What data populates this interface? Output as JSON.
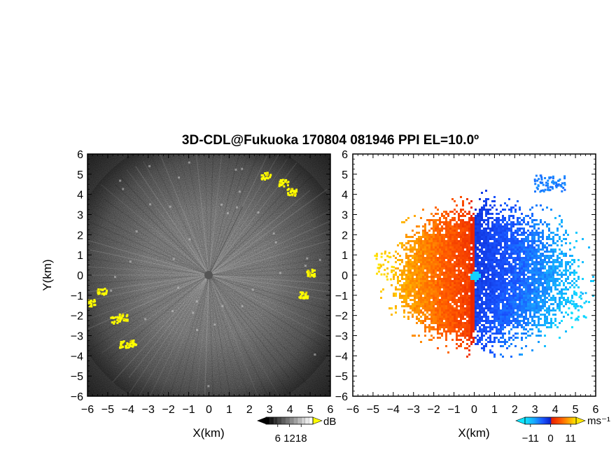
{
  "title": "3D-CDL@Fukuoka 170804 081946 PPI EL=10.0º",
  "chart_data": [
    {
      "type": "heatmap",
      "panel": "left",
      "quantity": "reflectivity / SNR",
      "xlabel": "X(km)",
      "ylabel": "Y(km)",
      "xlim": [
        -6,
        6
      ],
      "ylim": [
        -6,
        6
      ],
      "xticks": [
        "−6",
        "−5",
        "−4",
        "−3",
        "−2",
        "−1",
        "0",
        "1",
        "2",
        "3",
        "4",
        "5",
        "6"
      ],
      "yticks": [
        "6",
        "5",
        "4",
        "3",
        "2",
        "1",
        "0",
        "−1",
        "−2",
        "−3",
        "−4",
        "−5",
        "−6"
      ],
      "colorbar": {
        "unit": "dB",
        "ticks": [
          "6",
          "12",
          "18"
        ],
        "range": [
          0,
          24
        ],
        "palette": "black-to-white, yellow above max"
      },
      "background_range_km": 5.2,
      "yellow_echoes": [
        {
          "x": 3.65,
          "y": 4.6
        },
        {
          "x": 4.05,
          "y": 4.15
        },
        {
          "x": 2.8,
          "y": 4.95
        },
        {
          "x": 4.95,
          "y": 0.15
        },
        {
          "x": 4.6,
          "y": -0.95
        },
        {
          "x": -5.9,
          "y": -1.35
        },
        {
          "x": -5.3,
          "y": -0.8
        },
        {
          "x": -4.65,
          "y": -2.2
        },
        {
          "x": -4.3,
          "y": -2.05
        },
        {
          "x": -3.85,
          "y": -3.35
        },
        {
          "x": -4.2,
          "y": -3.4
        }
      ]
    },
    {
      "type": "heatmap",
      "panel": "right",
      "quantity": "Doppler velocity",
      "xlabel": "X(km)",
      "ylabel": "",
      "xlim": [
        -6,
        6
      ],
      "ylim": [
        -6,
        6
      ],
      "xticks": [
        "−6",
        "−5",
        "−4",
        "−3",
        "−2",
        "−1",
        "0",
        "1",
        "2",
        "3",
        "4",
        "5",
        "6"
      ],
      "colorbar": {
        "unit": "ms⁻¹",
        "ticks": [
          "−11",
          "0",
          "11"
        ],
        "range": [
          -14,
          14
        ],
        "palette": "cyan-blue-red-orange-yellow"
      },
      "regions": [
        {
          "name": "positive (receding) west half",
          "x_range": [
            -4.2,
            0
          ],
          "y_range": [
            -3.8,
            3.3
          ],
          "velocity_approx": 8
        },
        {
          "name": "negative (approaching) east half",
          "x_range": [
            0,
            5.5
          ],
          "y_range": [
            -4.2,
            3.6
          ],
          "velocity_approx": -8
        },
        {
          "name": "blue cluster",
          "x": 3.7,
          "y": 4.6,
          "velocity_approx": -9
        },
        {
          "name": "cyan edge far east",
          "x": 5.0,
          "y": -1.5,
          "velocity_approx": -13
        },
        {
          "name": "yellow edge far west",
          "x": -4.5,
          "y": 0.5,
          "velocity_approx": 13
        }
      ]
    }
  ]
}
